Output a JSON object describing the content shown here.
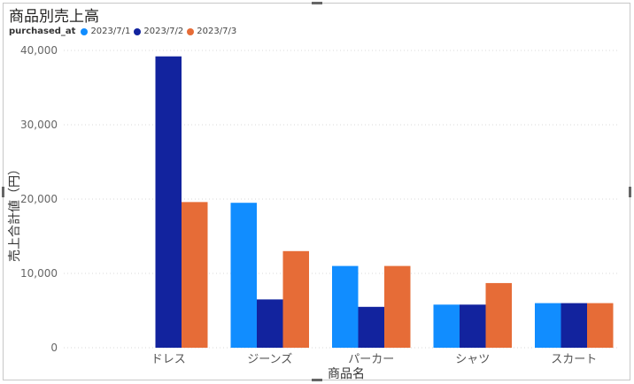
{
  "chart_data": {
    "type": "bar",
    "title": "商品別売上高",
    "xlabel": "商品名",
    "ylabel": "売上合計値（円）",
    "legend_title": "purchased_at",
    "legend_position": "top-left",
    "grid": true,
    "categories": [
      "ドレス",
      "ジーンズ",
      "パーカー",
      "シャツ",
      "スカート"
    ],
    "series": [
      {
        "name": "2023/7/1",
        "color": "#118DFF",
        "values": [
          null,
          19500,
          11000,
          5800,
          6000
        ]
      },
      {
        "name": "2023/7/2",
        "color": "#12239E",
        "values": [
          39200,
          6500,
          5500,
          5800,
          6000
        ]
      },
      {
        "name": "2023/7/3",
        "color": "#E66C37",
        "values": [
          19600,
          13000,
          11000,
          8700,
          6000
        ]
      }
    ],
    "ylim": [
      0,
      40000
    ],
    "yticks": [
      0,
      10000,
      20000,
      30000,
      40000
    ],
    "ytick_labels": [
      "0",
      "10,000",
      "20,000",
      "30,000",
      "40,000"
    ]
  }
}
